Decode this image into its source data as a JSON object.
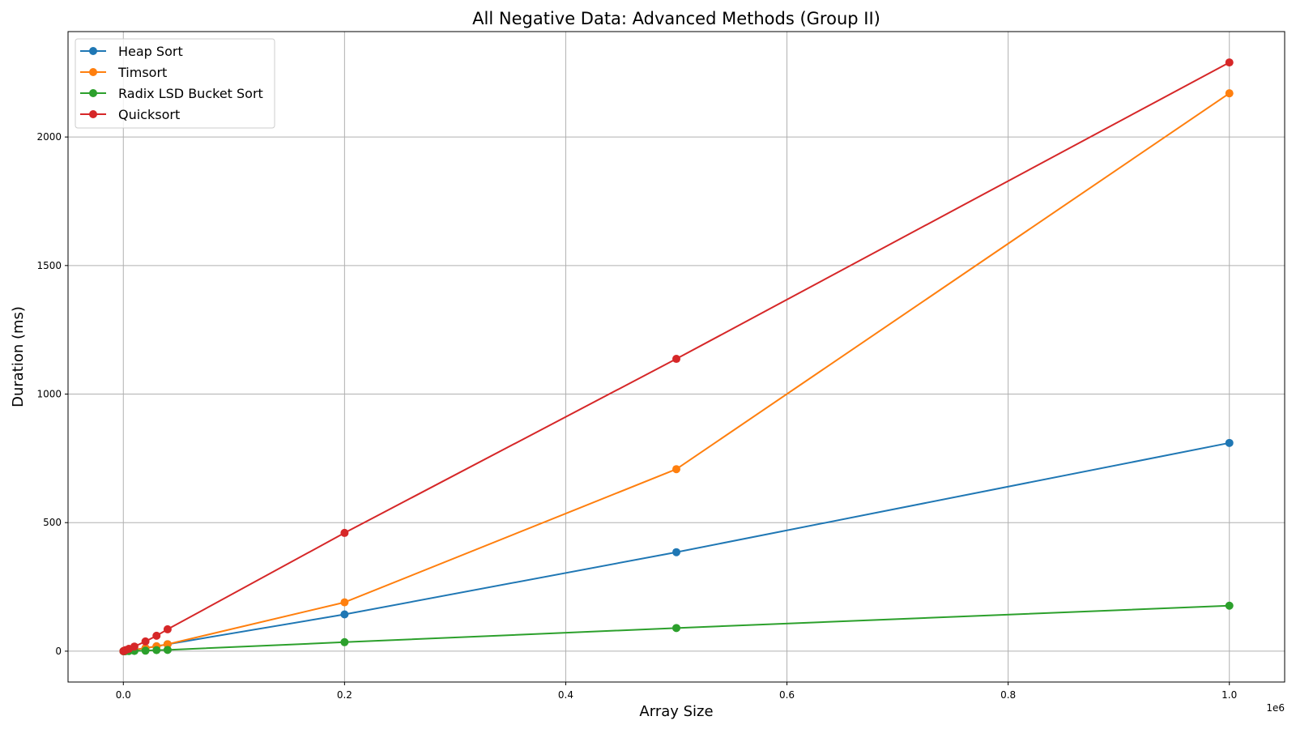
{
  "chart_data": {
    "type": "line",
    "title": "All Negative Data: Advanced Methods (Group II)",
    "xlabel": "Array Size",
    "ylabel": "Duration (ms)",
    "x_offset_label": "1e6",
    "xlim": [
      -0.05,
      1.05
    ],
    "ylim": [
      -120,
      2410
    ],
    "xticks": [
      0.0,
      0.2,
      0.4,
      0.6,
      0.8,
      1.0
    ],
    "xtick_labels": [
      "0.0",
      "0.2",
      "0.4",
      "0.6",
      "0.8",
      "1.0"
    ],
    "yticks": [
      0,
      500,
      1000,
      1500,
      2000
    ],
    "ytick_labels": [
      "0",
      "500",
      "1000",
      "1500",
      "2000"
    ],
    "grid": true,
    "legend_position": "top-left",
    "x": [
      0.0001,
      0.0005,
      0.001,
      0.002,
      0.005,
      0.01,
      0.02,
      0.03,
      0.04,
      0.2,
      0.5,
      1.0
    ],
    "series": [
      {
        "name": "Heap Sort",
        "color": "#1f77b4",
        "values": [
          0.02,
          0.2,
          0.4,
          0.9,
          2.5,
          5.5,
          12,
          19,
          27,
          143,
          385,
          810
        ]
      },
      {
        "name": "Timsort",
        "color": "#ff7f0e",
        "values": [
          0.02,
          0.2,
          0.4,
          0.9,
          2.5,
          5.5,
          12,
          19,
          27,
          190,
          708,
          2170
        ]
      },
      {
        "name": "Radix LSD Bucket Sort",
        "color": "#2ca02c",
        "values": [
          0.01,
          0.05,
          0.1,
          0.2,
          0.5,
          1,
          2,
          4,
          5,
          35,
          90,
          177
        ]
      },
      {
        "name": "Quicksort",
        "color": "#d62728",
        "values": [
          0.1,
          1,
          2,
          4,
          9,
          18,
          38,
          60,
          85,
          460,
          1137,
          2290
        ]
      }
    ]
  }
}
